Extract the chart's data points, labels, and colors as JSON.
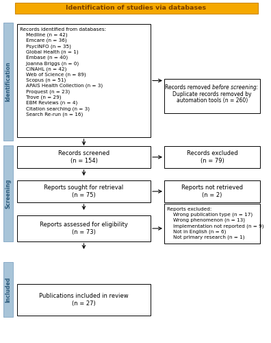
{
  "title": "Identification of studies via databases",
  "title_bg": "#F5A800",
  "title_text_color": "#7B3F00",
  "sidebar_color": "#A8C4D8",
  "sidebar_border": "#8BACC8",
  "box1_lines": [
    "Records identified from databases:",
    "    Medline (n = 42)",
    "    Emcare (n = 36)",
    "    PsycINFO (n = 35)",
    "    Global Health (n = 1)",
    "    Embase (n = 40)",
    "    Joanna Briggs (n = 0)",
    "    CINAHL (n = 42)",
    "    Web of Science (n = 89)",
    "    Scopus (n = 51)",
    "    APAIS Health Collection (n = 3)",
    "    Proquest (n = 23)",
    "    Trove (n = 29)",
    "    EBM Reviews (n = 4)",
    "    Citation searching (n = 3)",
    "    Search Re-run (n = 16)"
  ],
  "box2_line1": "Records removed ",
  "box2_line1_italic": "before screening:",
  "box2_line2": "Duplicate records removed by",
  "box2_line3": "automation tools (n = 260)",
  "box3_text": "Records screened\n(n = 154)",
  "box4_text": "Records excluded\n(n = 79)",
  "box5_text": "Reports sought for retrieval\n(n = 75)",
  "box6_text": "Reports not retrieved\n(n = 2)",
  "box7_text": "Reports assessed for eligibility\n(n = 73)",
  "box8_lines": [
    "Reports excluded:",
    "    Wrong publication type (n = 17)",
    "    Wrong phenomenon (n = 13)",
    "    Implementation not reported (n = 9)",
    "    Not in English (n = 6)",
    "    Not primary research (n = 1)"
  ],
  "box9_text": "Publications included in review\n(n = 27)",
  "bg_color": "#FFFFFF"
}
